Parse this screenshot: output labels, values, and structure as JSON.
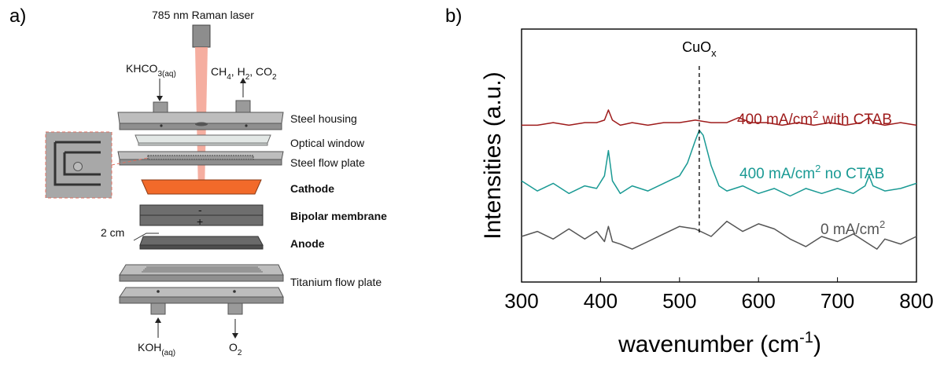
{
  "figure": {
    "panel_a_letter": "a)",
    "panel_b_letter": "b)"
  },
  "panel_a": {
    "laser_label": "785 nm Raman laser",
    "inlet_label": "KHCO",
    "inlet_sub": "3(aq)",
    "outlet_label_parts": [
      "CH",
      "4",
      ", H",
      "2",
      ", CO",
      "2"
    ],
    "scale_label": "2 cm",
    "bottom_in_label": "KOH",
    "bottom_in_sub": "(aq)",
    "bottom_out_label": "O",
    "bottom_out_sub": "2",
    "membrane_top_sign": "-",
    "membrane_bottom_sign": "+",
    "layers": [
      {
        "label": "Steel housing",
        "bold": false
      },
      {
        "label": "Optical window",
        "bold": false
      },
      {
        "label": "Steel flow plate",
        "bold": false
      },
      {
        "label": "Cathode",
        "bold": true
      },
      {
        "label": "Bipolar membrane",
        "bold": true
      },
      {
        "label": "Anode",
        "bold": true
      },
      {
        "label": "Titanium flow plate",
        "bold": false
      }
    ],
    "colors": {
      "laser": "#f3a08f",
      "cathode": "#f26a2a",
      "steel": "#a8a8a8",
      "dark": "#6a6a6a",
      "window": "#dfe4e2"
    }
  },
  "panel_b": {
    "chart_data": {
      "type": "line",
      "xlabel": "wavenumber (cm",
      "xlabel_sup": "-1",
      "xlabel_end": ")",
      "ylabel": "Intensities (a.u.)",
      "xlim": [
        300,
        800
      ],
      "xticks": [
        "300",
        "400",
        "500",
        "600",
        "700",
        "800"
      ],
      "yticks_shown": false,
      "annotation": {
        "text": "CuO",
        "sub": "x",
        "x": 525
      },
      "series": [
        {
          "name": "400 mA/cm2 with CTAB",
          "label_parts": [
            "400 mA/cm",
            "2",
            " with CTAB"
          ],
          "color": "#9e1b1b",
          "x": [
            300,
            320,
            340,
            360,
            380,
            395,
            405,
            410,
            415,
            425,
            440,
            460,
            480,
            500,
            520,
            540,
            560,
            575,
            590,
            610,
            630,
            650,
            670,
            690,
            710,
            730,
            740,
            745,
            760,
            780,
            800
          ],
          "y": [
            0.62,
            0.62,
            0.63,
            0.62,
            0.63,
            0.63,
            0.64,
            0.68,
            0.64,
            0.62,
            0.63,
            0.62,
            0.63,
            0.63,
            0.64,
            0.63,
            0.63,
            0.65,
            0.63,
            0.63,
            0.62,
            0.63,
            0.62,
            0.63,
            0.62,
            0.63,
            0.65,
            0.63,
            0.62,
            0.63,
            0.62
          ]
        },
        {
          "name": "400 mA/cm2 no CTAB",
          "label_parts": [
            "400 mA/cm",
            "2",
            " no CTAB"
          ],
          "color": "#1a9a94",
          "x": [
            300,
            320,
            340,
            360,
            380,
            395,
            405,
            410,
            415,
            425,
            440,
            460,
            480,
            500,
            510,
            520,
            525,
            530,
            540,
            550,
            560,
            580,
            600,
            620,
            640,
            660,
            680,
            700,
            720,
            735,
            740,
            745,
            760,
            780,
            800
          ],
          "y": [
            0.4,
            0.36,
            0.39,
            0.35,
            0.38,
            0.37,
            0.42,
            0.52,
            0.4,
            0.35,
            0.38,
            0.36,
            0.39,
            0.42,
            0.47,
            0.56,
            0.6,
            0.58,
            0.46,
            0.38,
            0.36,
            0.38,
            0.35,
            0.37,
            0.34,
            0.37,
            0.35,
            0.37,
            0.35,
            0.38,
            0.42,
            0.38,
            0.36,
            0.37,
            0.39
          ]
        },
        {
          "name": "0 mA/cm2",
          "label_parts": [
            "0 mA/cm",
            "2",
            ""
          ],
          "color": "#555555",
          "x": [
            300,
            320,
            340,
            360,
            380,
            395,
            405,
            410,
            415,
            425,
            440,
            460,
            480,
            500,
            520,
            540,
            560,
            580,
            600,
            620,
            640,
            660,
            680,
            700,
            720,
            740,
            750,
            760,
            780,
            800
          ],
          "y": [
            0.18,
            0.2,
            0.17,
            0.21,
            0.17,
            0.2,
            0.16,
            0.22,
            0.16,
            0.15,
            0.13,
            0.16,
            0.19,
            0.22,
            0.21,
            0.18,
            0.24,
            0.2,
            0.23,
            0.21,
            0.17,
            0.14,
            0.18,
            0.16,
            0.19,
            0.15,
            0.13,
            0.17,
            0.15,
            0.18
          ]
        }
      ]
    }
  }
}
